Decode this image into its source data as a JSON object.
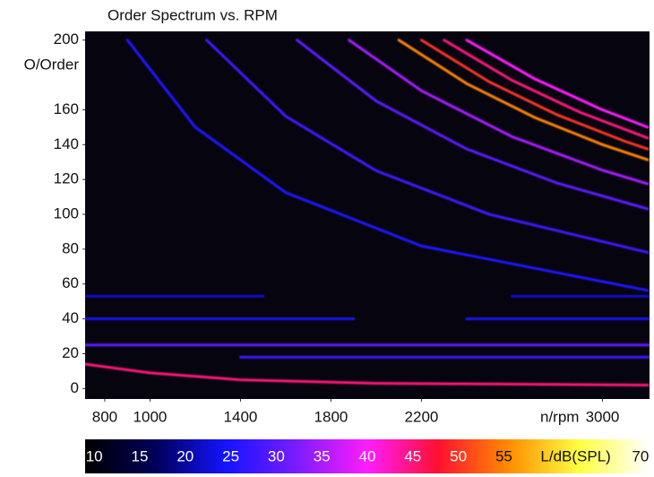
{
  "chart_data": {
    "type": "spectrogram",
    "title": "Order Spectrum vs. RPM",
    "x_label": "n/rpm",
    "y_label": "O/Order",
    "colorbar_label": "L/dB(SPL)",
    "xlim": [
      713,
      3208
    ],
    "xticks": [
      800,
      1000,
      1400,
      1800,
      2200,
      3000
    ],
    "ylim": [
      -6,
      205
    ],
    "yticks": [
      0,
      20,
      40,
      60,
      80,
      100,
      120,
      140,
      160,
      200
    ],
    "zlim": [
      9,
      71
    ],
    "zticks": [
      10,
      15,
      20,
      25,
      30,
      35,
      40,
      45,
      50,
      55,
      70
    ],
    "colormap": [
      "#000000",
      "#00005a",
      "#1414ff",
      "#7a1cff",
      "#ff1cff",
      "#ff1030",
      "#ff8c00",
      "#ffff40",
      "#ffffff"
    ],
    "background": "#06040f",
    "series": [
      {
        "level": 45,
        "x": [
          713,
          1000,
          1400,
          2000,
          3200
        ],
        "values": [
          14,
          9,
          5,
          3,
          2
        ]
      },
      {
        "level": 30,
        "x": [
          713,
          3208
        ],
        "values": [
          25,
          25
        ]
      },
      {
        "level": 28,
        "x": [
          1400,
          3208
        ],
        "values": [
          18,
          18
        ]
      },
      {
        "level": 24,
        "x": [
          713,
          1900
        ],
        "values": [
          40,
          40
        ]
      },
      {
        "level": 24,
        "x": [
          2400,
          3208
        ],
        "values": [
          40,
          40
        ]
      },
      {
        "level": 22,
        "x": [
          713,
          1500
        ],
        "values": [
          53,
          53
        ]
      },
      {
        "level": 22,
        "x": [
          2600,
          3208
        ],
        "values": [
          53,
          53
        ]
      },
      {
        "level": 55,
        "x": [
          2100,
          2400,
          2700,
          3000,
          3200
        ],
        "values": [
          200,
          175,
          155.6,
          140,
          131.3
        ]
      },
      {
        "level": 50,
        "x": [
          2200,
          2500,
          2800,
          3100,
          3200
        ],
        "values": [
          200,
          176,
          157.1,
          141.9,
          137.5
        ]
      },
      {
        "level": 45,
        "x": [
          2300,
          2600,
          2900,
          3200
        ],
        "values": [
          200,
          176.9,
          158.6,
          143.8
        ]
      },
      {
        "level": 40,
        "x": [
          2400,
          2700,
          3000,
          3200
        ],
        "values": [
          200,
          177.8,
          160,
          150
        ]
      },
      {
        "level": 35,
        "x": [
          1880,
          2200,
          2600,
          3000,
          3200
        ],
        "values": [
          200,
          170.9,
          144.6,
          125.3,
          117.5
        ]
      },
      {
        "level": 30,
        "x": [
          1650,
          2000,
          2400,
          2800,
          3200
        ],
        "values": [
          200,
          165,
          137.5,
          117.9,
          103.1
        ]
      },
      {
        "level": 28,
        "x": [
          1250,
          1600,
          2000,
          2500,
          3200
        ],
        "values": [
          200,
          156.3,
          125,
          100,
          78.1
        ]
      },
      {
        "level": 25,
        "x": [
          900,
          1200,
          1600,
          2200,
          3200
        ],
        "values": [
          200,
          150,
          112.5,
          81.8,
          56.3
        ]
      }
    ]
  }
}
